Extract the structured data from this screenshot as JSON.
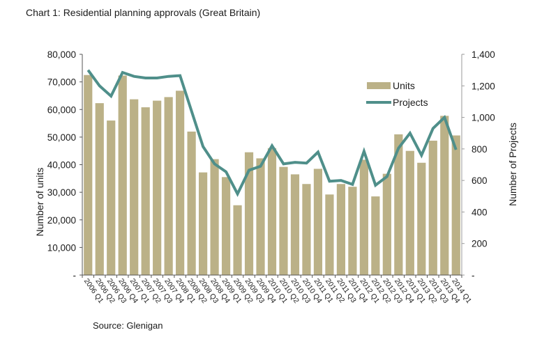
{
  "title": "Chart 1: Residential planning approvals (Great Britain)",
  "source": "Source: Glenigan",
  "colors": {
    "units": "#bbb187",
    "projects": "#4f8f8a",
    "axis": "#555555"
  },
  "chart_data": {
    "type": "bar",
    "title": "Chart 1: Residential planning approvals (Great Britain)",
    "categories": [
      "2006 Q1",
      "2006 Q2",
      "2006 Q3",
      "2006 Q4",
      "2007 Q1",
      "2007 Q2",
      "2007 Q3",
      "2007 Q4",
      "2008 Q1",
      "2008 Q2",
      "2008 Q3",
      "2008 Q4",
      "2009 Q1",
      "2009 Q2",
      "2009 Q3",
      "2009 Q4",
      "2010 Q1",
      "2010 Q2",
      "2010 Q3",
      "2010 Q4",
      "2011 Q1",
      "2011 Q2",
      "2011 Q3",
      "2011 Q4",
      "2012 Q1",
      "2012 Q2",
      "2012 Q3",
      "2012 Q4",
      "2013 Q1",
      "2013 Q2",
      "2013 Q3",
      "2013 Q4",
      "2014 Q1"
    ],
    "series": [
      {
        "name": "Units",
        "type": "bar",
        "axis": "left",
        "values": [
          72500,
          62300,
          56000,
          72300,
          63700,
          60800,
          63200,
          64500,
          66800,
          52000,
          37200,
          42000,
          35500,
          25300,
          44500,
          42300,
          46000,
          39200,
          36500,
          33000,
          38500,
          29200,
          33000,
          32000,
          41800,
          28500,
          36700,
          51000,
          45000,
          40700,
          48700,
          57700,
          50600
        ]
      },
      {
        "name": "Projects",
        "type": "line",
        "axis": "right",
        "values": [
          1300,
          1200,
          1135,
          1285,
          1260,
          1250,
          1250,
          1260,
          1265,
          1040,
          815,
          705,
          655,
          515,
          665,
          690,
          820,
          705,
          715,
          710,
          780,
          595,
          600,
          575,
          785,
          570,
          625,
          805,
          900,
          760,
          930,
          1000,
          795
        ]
      }
    ],
    "ylabel": "Number of units",
    "y2label": "Number of Projects",
    "ylim": [
      0,
      80000
    ],
    "y2lim": [
      0,
      1400
    ],
    "yticks": [
      "-",
      "10,000",
      "20,000",
      "30,000",
      "40,000",
      "50,000",
      "60,000",
      "70,000",
      "80,000"
    ],
    "y2ticks": [
      "-",
      "200",
      "400",
      "600",
      "800",
      "1,000",
      "1,200",
      "1,400"
    ],
    "legend": [
      "Units",
      "Projects"
    ],
    "legend_position": "top-right",
    "grid": false
  }
}
